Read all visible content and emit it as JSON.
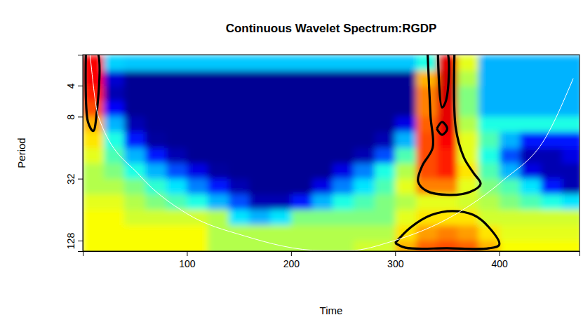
{
  "chart_data": {
    "type": "heatmap",
    "title": "Continuous Wavelet Spectrum:RGDP",
    "xlabel": "Time",
    "ylabel": "Period",
    "log": "y",
    "xlim": [
      0,
      477
    ],
    "xticks": [
      100,
      200,
      300,
      400
    ],
    "ylim": [
      2,
      162
    ],
    "yticks": [
      4,
      8,
      32,
      128
    ],
    "zlim": [
      0,
      1
    ],
    "x": [
      10,
      30,
      50,
      70,
      90,
      110,
      130,
      150,
      170,
      190,
      210,
      230,
      250,
      270,
      290,
      310,
      330,
      350,
      370,
      390,
      410,
      430,
      450,
      470
    ],
    "y": [
      2.4,
      3.4,
      4.8,
      6.7,
      9.5,
      13.5,
      19,
      27,
      38,
      54,
      76,
      108,
      152
    ],
    "values": [
      [
        0.88,
        0.33,
        0.32,
        0.32,
        0.32,
        0.32,
        0.32,
        0.32,
        0.32,
        0.32,
        0.32,
        0.32,
        0.32,
        0.32,
        0.32,
        0.32,
        0.4,
        0.9,
        0.6,
        0.3,
        0.3,
        0.3,
        0.3,
        0.3
      ],
      [
        0.88,
        0.08,
        0.02,
        0.02,
        0.02,
        0.02,
        0.02,
        0.02,
        0.02,
        0.02,
        0.02,
        0.02,
        0.02,
        0.02,
        0.02,
        0.02,
        0.7,
        0.92,
        0.55,
        0.3,
        0.3,
        0.3,
        0.3,
        0.3
      ],
      [
        0.85,
        0.05,
        0.02,
        0.02,
        0.02,
        0.02,
        0.02,
        0.02,
        0.02,
        0.02,
        0.02,
        0.02,
        0.02,
        0.02,
        0.02,
        0.02,
        0.75,
        0.92,
        0.5,
        0.3,
        0.3,
        0.3,
        0.3,
        0.3
      ],
      [
        0.8,
        0.12,
        0.02,
        0.02,
        0.02,
        0.02,
        0.02,
        0.02,
        0.02,
        0.02,
        0.02,
        0.02,
        0.02,
        0.02,
        0.02,
        0.02,
        0.75,
        0.9,
        0.5,
        0.3,
        0.3,
        0.3,
        0.3,
        0.3
      ],
      [
        0.7,
        0.3,
        0.05,
        0.02,
        0.02,
        0.02,
        0.02,
        0.02,
        0.02,
        0.02,
        0.02,
        0.02,
        0.02,
        0.02,
        0.02,
        0.1,
        0.78,
        0.9,
        0.55,
        0.4,
        0.4,
        0.4,
        0.4,
        0.4
      ],
      [
        0.65,
        0.4,
        0.15,
        0.03,
        0.02,
        0.02,
        0.02,
        0.02,
        0.02,
        0.02,
        0.02,
        0.02,
        0.02,
        0.02,
        0.05,
        0.3,
        0.8,
        0.88,
        0.6,
        0.45,
        0.3,
        0.15,
        0.15,
        0.15
      ],
      [
        0.6,
        0.45,
        0.3,
        0.15,
        0.05,
        0.02,
        0.02,
        0.02,
        0.02,
        0.02,
        0.02,
        0.02,
        0.02,
        0.05,
        0.2,
        0.45,
        0.8,
        0.85,
        0.6,
        0.4,
        0.2,
        0.05,
        0.05,
        0.1
      ],
      [
        0.55,
        0.5,
        0.4,
        0.3,
        0.2,
        0.1,
        0.03,
        0.02,
        0.02,
        0.02,
        0.02,
        0.02,
        0.1,
        0.25,
        0.4,
        0.55,
        0.8,
        0.85,
        0.65,
        0.45,
        0.3,
        0.1,
        0.05,
        0.05
      ],
      [
        0.55,
        0.55,
        0.5,
        0.42,
        0.35,
        0.25,
        0.15,
        0.05,
        0.02,
        0.02,
        0.02,
        0.1,
        0.25,
        0.35,
        0.45,
        0.6,
        0.75,
        0.75,
        0.6,
        0.5,
        0.45,
        0.35,
        0.15,
        0.05
      ],
      [
        0.6,
        0.6,
        0.55,
        0.5,
        0.45,
        0.4,
        0.3,
        0.2,
        0.05,
        0.05,
        0.15,
        0.3,
        0.4,
        0.45,
        0.5,
        0.55,
        0.6,
        0.6,
        0.58,
        0.55,
        0.5,
        0.45,
        0.4,
        0.35
      ],
      [
        0.62,
        0.62,
        0.58,
        0.58,
        0.58,
        0.58,
        0.55,
        0.35,
        0.3,
        0.35,
        0.5,
        0.5,
        0.5,
        0.5,
        0.5,
        0.6,
        0.65,
        0.65,
        0.65,
        0.58,
        0.58,
        0.58,
        0.58,
        0.58
      ],
      [
        0.62,
        0.62,
        0.62,
        0.62,
        0.62,
        0.62,
        0.55,
        0.55,
        0.55,
        0.55,
        0.55,
        0.55,
        0.55,
        0.55,
        0.55,
        0.65,
        0.72,
        0.75,
        0.72,
        0.65,
        0.6,
        0.6,
        0.6,
        0.6
      ],
      [
        0.62,
        0.62,
        0.62,
        0.62,
        0.62,
        0.62,
        0.55,
        0.55,
        0.55,
        0.55,
        0.55,
        0.55,
        0.55,
        0.58,
        0.58,
        0.7,
        0.78,
        0.8,
        0.78,
        0.7,
        0.62,
        0.62,
        0.62,
        0.62
      ]
    ],
    "coi": {
      "x": [
        7,
        15,
        55,
        100,
        155,
        230,
        256,
        297,
        357,
        404,
        444,
        471
      ],
      "y": [
        2,
        8,
        30,
        70,
        115,
        160,
        160,
        130,
        72,
        33,
        13,
        3.4
      ]
    },
    "contours": [
      {
        "x": [
          3,
          13,
          13,
          10,
          5,
          3
        ],
        "y": [
          1.8,
          1.8,
          8,
          11,
          9,
          1.8
        ]
      },
      {
        "x": [
          331,
          334,
          336,
          326,
          322,
          330,
          352,
          372,
          382,
          375,
          366,
          358,
          357
        ],
        "y": [
          1.8,
          8,
          16,
          24,
          34,
          42,
          46,
          43,
          36,
          28,
          20,
          10,
          1.8
        ]
      },
      {
        "x": [
          341,
          349,
          349,
          345,
          341
        ],
        "y": [
          1.8,
          1.8,
          5.5,
          6.5,
          1.8
        ]
      },
      {
        "x": [
          340,
          345,
          350,
          345,
          340
        ],
        "y": [
          10.5,
          9,
          10.5,
          12,
          10.5
        ]
      },
      {
        "x": [
          300,
          315,
          335,
          355,
          375,
          390,
          400,
          390,
          350,
          310,
          300
        ],
        "y": [
          135,
          95,
          72,
          66,
          72,
          95,
          140,
          152,
          152,
          150,
          135
        ]
      }
    ]
  }
}
